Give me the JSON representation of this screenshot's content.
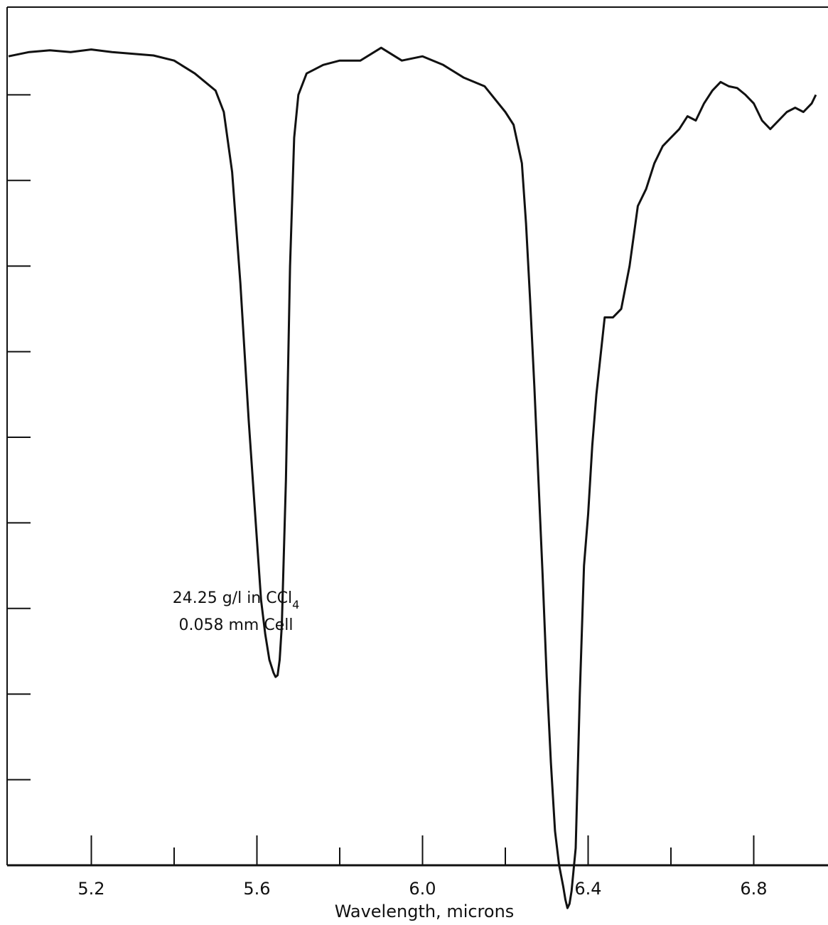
{
  "chart_data": {
    "type": "line",
    "title": "",
    "xlabel": "Wavelength, microns",
    "ylabel": "",
    "xlim": [
      5.0,
      6.95
    ],
    "ylim": [
      0,
      100
    ],
    "x_major_ticks": [
      5.2,
      5.6,
      6.0,
      6.4,
      6.8
    ],
    "x_major_tick_labels": [
      "5.2",
      "5.6",
      "6.0",
      "6.4",
      "6.8"
    ],
    "x_minor_ticks": [
      5.4,
      5.8,
      6.2,
      6.6
    ],
    "y_ticks": [
      10,
      20,
      30,
      40,
      50,
      60,
      70,
      80,
      90
    ],
    "y_tick_labels": [],
    "grid": false,
    "annotations": [
      {
        "text": "24.25 g/l in CCl",
        "subscript": "4"
      },
      {
        "text": "0.058 mm Cell"
      }
    ],
    "series": [
      {
        "x": [
          5.0,
          5.05,
          5.1,
          5.15,
          5.2,
          5.25,
          5.3,
          5.35,
          5.4,
          5.45,
          5.5,
          5.52,
          5.54,
          5.56,
          5.58,
          5.6,
          5.61,
          5.62,
          5.63,
          5.64,
          5.645,
          5.65,
          5.655,
          5.66,
          5.67,
          5.68,
          5.69,
          5.7,
          5.72,
          5.74,
          5.76,
          5.8,
          5.85,
          5.9,
          5.95,
          6.0,
          6.05,
          6.1,
          6.15,
          6.2,
          6.22,
          6.24,
          6.25,
          6.26,
          6.27,
          6.28,
          6.29,
          6.3,
          6.31,
          6.32,
          6.33,
          6.34,
          6.345,
          6.35,
          6.355,
          6.36,
          6.37,
          6.38,
          6.39,
          6.4,
          6.41,
          6.42,
          6.44,
          6.46,
          6.47,
          6.48,
          6.5,
          6.52,
          6.54,
          6.56,
          6.58,
          6.6,
          6.62,
          6.64,
          6.66,
          6.68,
          6.7,
          6.72,
          6.74,
          6.76,
          6.78,
          6.8,
          6.82,
          6.84,
          6.86,
          6.88,
          6.9,
          6.92,
          6.94,
          6.95
        ],
        "y": [
          94.5,
          95.0,
          95.2,
          95.0,
          95.3,
          95.0,
          94.8,
          94.6,
          94.0,
          92.5,
          90.5,
          88.0,
          81.0,
          68.0,
          52.0,
          38.0,
          31.0,
          27.0,
          24.0,
          22.5,
          22.0,
          22.2,
          24.0,
          28.0,
          45.0,
          70.0,
          85.0,
          90.0,
          92.5,
          93.0,
          93.5,
          94.0,
          94.0,
          95.5,
          94.0,
          94.5,
          93.5,
          92.0,
          91.0,
          88.0,
          86.5,
          82.0,
          75.0,
          66.0,
          56.0,
          45.0,
          34.0,
          22.0,
          12.0,
          4.0,
          0.0,
          -2.5,
          -4.0,
          -5.0,
          -4.5,
          -3.0,
          2.0,
          20.0,
          35.0,
          41.0,
          49.0,
          55.0,
          64.0,
          64.0,
          64.5,
          65.0,
          70.0,
          77.0,
          79.0,
          82.0,
          84.0,
          85.0,
          86.0,
          87.5,
          87.0,
          89.0,
          90.5,
          91.5,
          91.0,
          90.8,
          90.0,
          89.0,
          87.0,
          86.0,
          87.0,
          88.0,
          88.5,
          88.0,
          89.0,
          90.0
        ]
      }
    ]
  }
}
